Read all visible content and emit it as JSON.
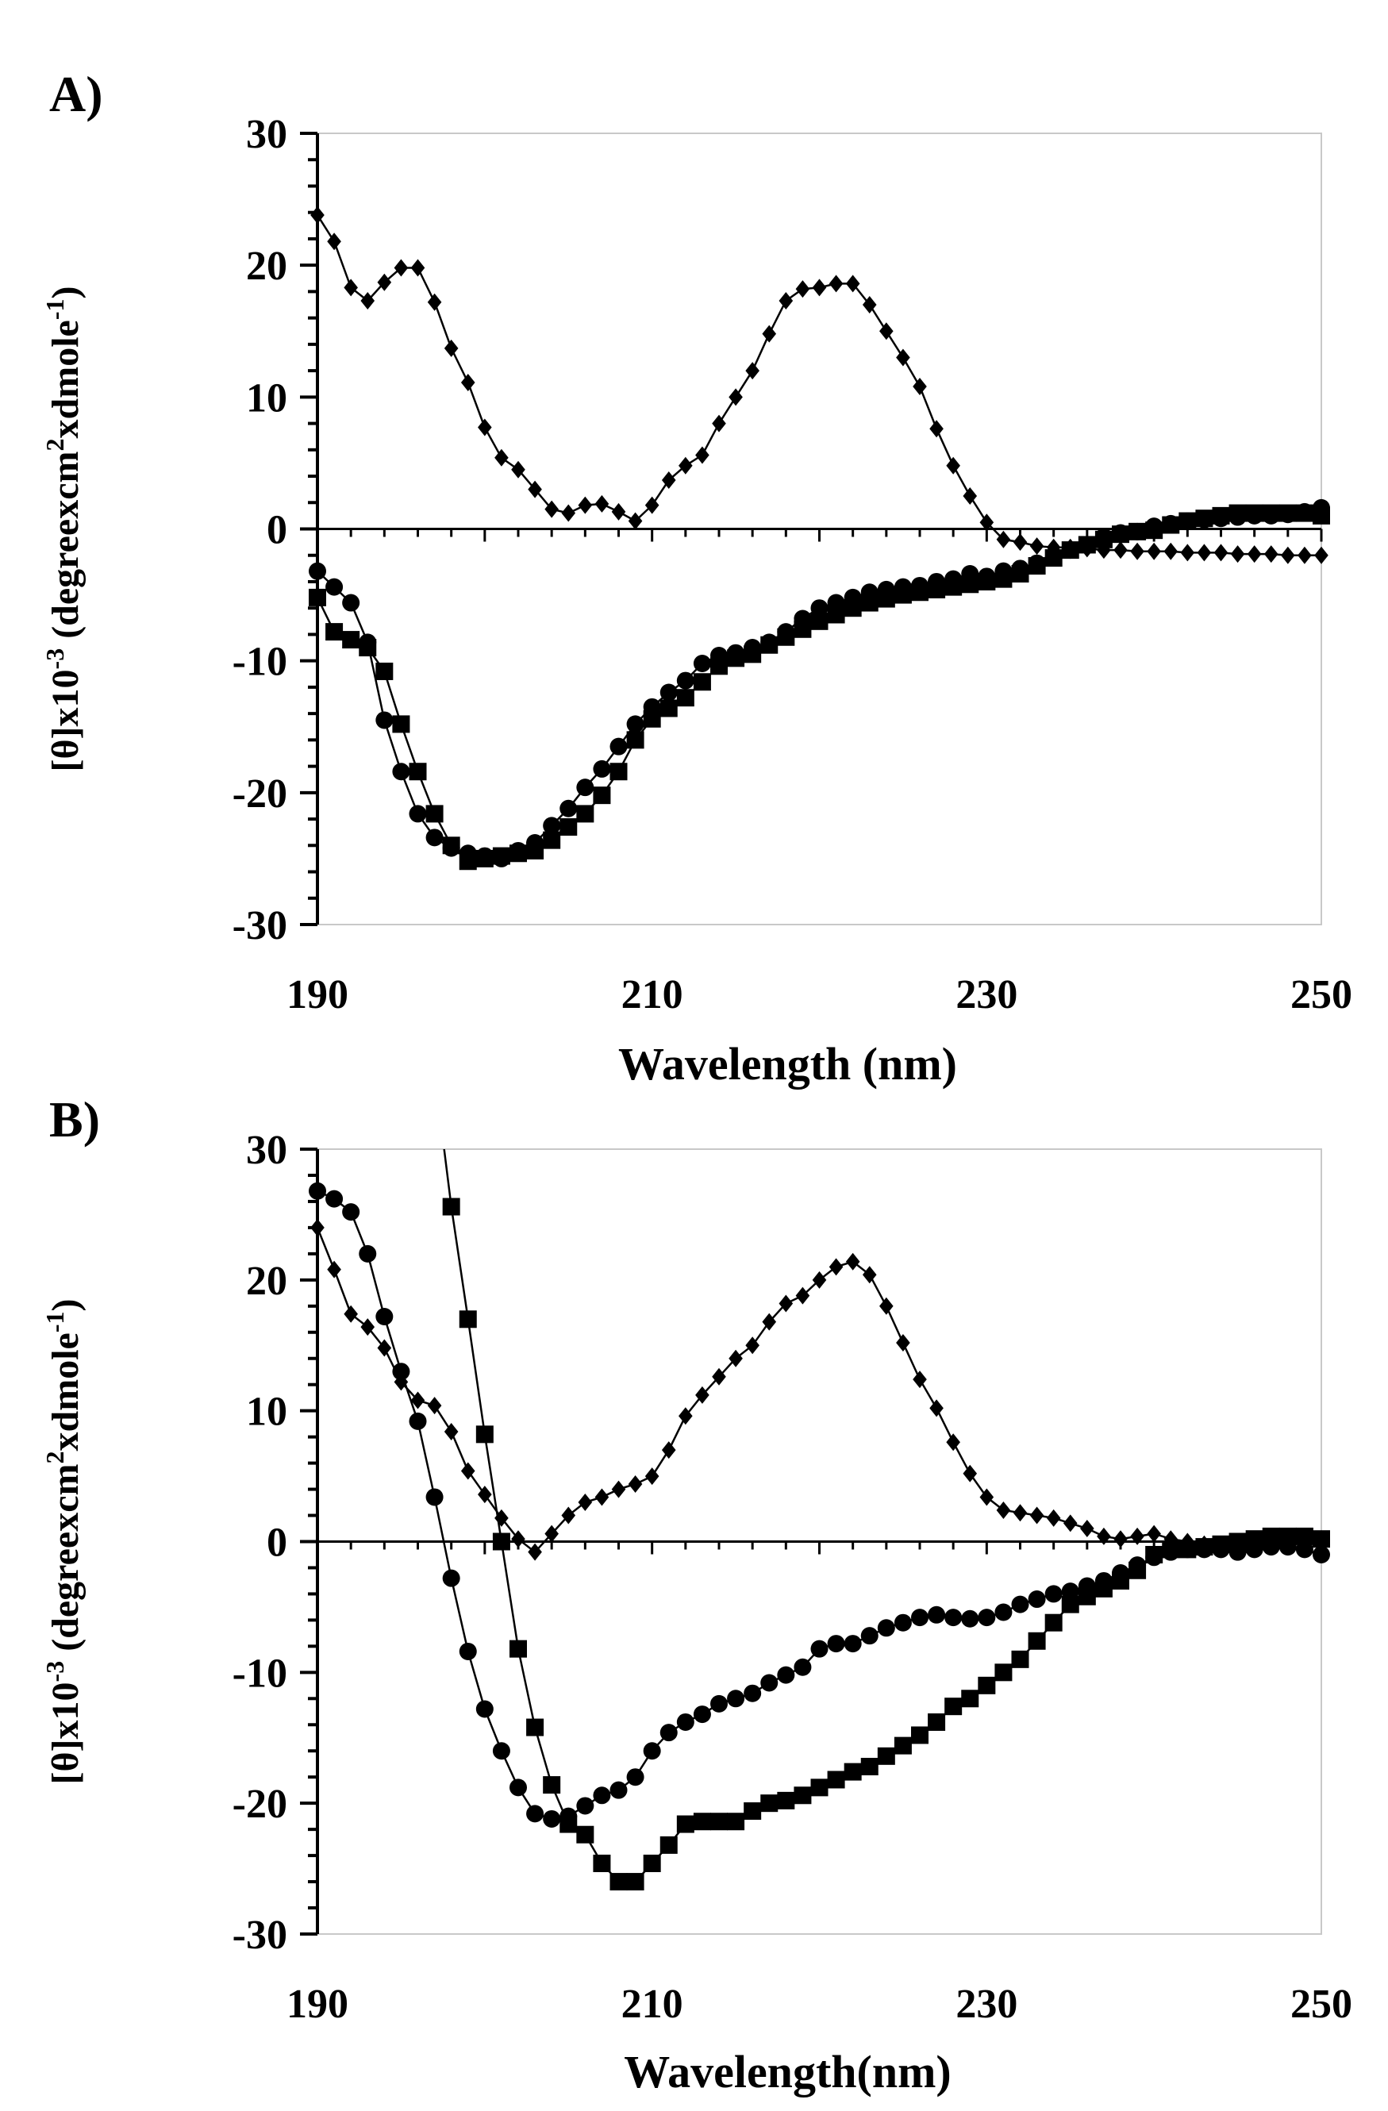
{
  "chart_data": [
    {
      "type": "line",
      "panel_label": "A)",
      "xlabel": "Wavelength (nm)",
      "ylabel": "[θ]x10-3 (degreexcm2xdmole-1)",
      "ylabel_parts": {
        "pre": "[θ]x10",
        "exp1": "-3",
        "mid": " (degreexcm",
        "exp2": "2",
        "mid2": "xdmole",
        "exp3": "-1",
        "post": ")"
      },
      "xlim": [
        190,
        250
      ],
      "ylim": [
        -30,
        30
      ],
      "x_ticks": [
        "190",
        "210",
        "230",
        "250"
      ],
      "y_ticks": [
        "30",
        "20",
        "10",
        "0",
        "-10",
        "-20",
        "-30"
      ],
      "series": [
        {
          "name": "diamond",
          "marker": "diamond",
          "x": [
            190,
            191,
            192,
            193,
            194,
            195,
            196,
            197,
            198,
            199,
            200,
            201,
            202,
            203,
            204,
            205,
            206,
            207,
            208,
            209,
            210,
            211,
            212,
            213,
            214,
            215,
            216,
            217,
            218,
            219,
            220,
            221,
            222,
            223,
            224,
            225,
            226,
            227,
            228,
            229,
            230,
            231,
            232,
            233,
            234,
            235,
            236,
            237,
            238,
            239,
            240,
            241,
            242,
            243,
            244,
            245,
            246,
            247,
            248,
            249,
            250
          ],
          "y": [
            23.8,
            21.8,
            18.3,
            17.3,
            18.7,
            19.8,
            19.8,
            17.2,
            13.7,
            11.1,
            7.7,
            5.4,
            4.5,
            3.0,
            1.5,
            1.2,
            1.8,
            1.9,
            1.3,
            0.6,
            1.8,
            3.7,
            4.8,
            5.6,
            8.0,
            10.0,
            12.0,
            14.8,
            17.3,
            18.2,
            18.3,
            18.6,
            18.6,
            17.0,
            15.0,
            13.0,
            10.8,
            7.6,
            4.8,
            2.5,
            0.5,
            -0.8,
            -1.0,
            -1.3,
            -1.4,
            -1.4,
            -1.5,
            -1.6,
            -1.6,
            -1.7,
            -1.7,
            -1.7,
            -1.8,
            -1.8,
            -1.8,
            -1.9,
            -1.9,
            -1.9,
            -2.0,
            -2.0,
            -2.0
          ]
        },
        {
          "name": "circle",
          "marker": "circle",
          "x": [
            190,
            191,
            192,
            193,
            194,
            195,
            196,
            197,
            198,
            199,
            200,
            201,
            202,
            203,
            204,
            205,
            206,
            207,
            208,
            209,
            210,
            211,
            212,
            213,
            214,
            215,
            216,
            217,
            218,
            219,
            220,
            221,
            222,
            223,
            224,
            225,
            226,
            227,
            228,
            229,
            230,
            231,
            232,
            233,
            234,
            235,
            236,
            237,
            238,
            239,
            240,
            241,
            242,
            243,
            244,
            245,
            246,
            247,
            248,
            249,
            250
          ],
          "y": [
            -3.2,
            -4.4,
            -5.6,
            -8.6,
            -14.5,
            -18.4,
            -21.6,
            -23.4,
            -24.2,
            -24.6,
            -24.8,
            -25.0,
            -24.4,
            -23.8,
            -22.5,
            -21.2,
            -19.6,
            -18.2,
            -16.5,
            -14.8,
            -13.5,
            -12.4,
            -11.5,
            -10.2,
            -9.6,
            -9.4,
            -9.0,
            -8.6,
            -7.8,
            -6.8,
            -6.0,
            -5.6,
            -5.2,
            -4.8,
            -4.6,
            -4.4,
            -4.3,
            -4.0,
            -3.8,
            -3.4,
            -3.6,
            -3.2,
            -3.0,
            -2.6,
            -2.2,
            -1.6,
            -1.2,
            -0.6,
            -0.3,
            -0.2,
            0.2,
            0.4,
            0.6,
            0.7,
            0.8,
            0.9,
            1.0,
            1.0,
            1.1,
            1.3,
            1.6
          ]
        },
        {
          "name": "square",
          "marker": "square",
          "x": [
            190,
            191,
            192,
            193,
            194,
            195,
            196,
            197,
            198,
            199,
            200,
            201,
            202,
            203,
            204,
            205,
            206,
            207,
            208,
            209,
            210,
            211,
            212,
            213,
            214,
            215,
            216,
            217,
            218,
            219,
            220,
            221,
            222,
            223,
            224,
            225,
            226,
            227,
            228,
            229,
            230,
            231,
            232,
            233,
            234,
            235,
            236,
            237,
            238,
            239,
            240,
            241,
            242,
            243,
            244,
            245,
            246,
            247,
            248,
            249,
            250
          ],
          "y": [
            -5.2,
            -7.8,
            -8.4,
            -9.0,
            -10.8,
            -14.8,
            -18.4,
            -21.6,
            -24.0,
            -25.2,
            -25.0,
            -24.8,
            -24.6,
            -24.4,
            -23.6,
            -22.6,
            -21.6,
            -20.2,
            -18.4,
            -16.0,
            -14.4,
            -13.6,
            -12.8,
            -11.6,
            -10.4,
            -9.8,
            -9.5,
            -8.8,
            -8.2,
            -7.6,
            -7.0,
            -6.5,
            -6.0,
            -5.6,
            -5.3,
            -5.0,
            -4.8,
            -4.6,
            -4.4,
            -4.2,
            -4.0,
            -3.8,
            -3.4,
            -2.8,
            -2.2,
            -1.6,
            -1.2,
            -0.8,
            -0.4,
            -0.2,
            -0.1,
            0.3,
            0.6,
            0.8,
            1.0,
            1.2,
            1.2,
            1.2,
            1.2,
            1.2,
            1.0
          ]
        }
      ]
    },
    {
      "type": "line",
      "panel_label": "B)",
      "xlabel": "Wavelength(nm)",
      "ylabel": "[θ]x10-3 (degreexcm2xdmole-1)",
      "ylabel_parts": {
        "pre": "[θ]x10",
        "exp1": "-3",
        "mid": " (degreexcm",
        "exp2": "2",
        "mid2": "xdmole",
        "exp3": "-1",
        "post": ")"
      },
      "xlim": [
        190,
        250
      ],
      "ylim": [
        -30,
        30
      ],
      "x_ticks": [
        "190",
        "210",
        "230",
        "250"
      ],
      "y_ticks": [
        "30",
        "20",
        "10",
        "0",
        "-10",
        "-20",
        "-30"
      ],
      "series": [
        {
          "name": "diamond",
          "marker": "diamond",
          "x": [
            190,
            191,
            192,
            193,
            194,
            195,
            196,
            197,
            198,
            199,
            200,
            201,
            202,
            203,
            204,
            205,
            206,
            207,
            208,
            209,
            210,
            211,
            212,
            213,
            214,
            215,
            216,
            217,
            218,
            219,
            220,
            221,
            222,
            223,
            224,
            225,
            226,
            227,
            228,
            229,
            230,
            231,
            232,
            233,
            234,
            235,
            236,
            237,
            238,
            239,
            240,
            241,
            242,
            243,
            244,
            245,
            246,
            247,
            248,
            249,
            250
          ],
          "y": [
            24.0,
            20.8,
            17.4,
            16.4,
            14.8,
            12.2,
            10.8,
            10.4,
            8.4,
            5.4,
            3.6,
            1.8,
            0.2,
            -0.8,
            0.6,
            2.0,
            3.0,
            3.4,
            4.0,
            4.4,
            5.0,
            7.0,
            9.6,
            11.2,
            12.6,
            14.0,
            15.0,
            16.8,
            18.2,
            18.8,
            20.0,
            21.0,
            21.4,
            20.4,
            18.0,
            15.2,
            12.4,
            10.2,
            7.6,
            5.2,
            3.4,
            2.4,
            2.2,
            2.0,
            1.8,
            1.4,
            1.0,
            0.4,
            0.2,
            0.4,
            0.6,
            0.2,
            0.0,
            -0.2,
            -0.4,
            -0.2,
            0.0,
            0.2,
            0.2,
            0.2,
            0.2
          ]
        },
        {
          "name": "circle",
          "marker": "circle",
          "x": [
            190,
            191,
            192,
            193,
            194,
            195,
            196,
            197,
            198,
            199,
            200,
            201,
            202,
            203,
            204,
            205,
            206,
            207,
            208,
            209,
            210,
            211,
            212,
            213,
            214,
            215,
            216,
            217,
            218,
            219,
            220,
            221,
            222,
            223,
            224,
            225,
            226,
            227,
            228,
            229,
            230,
            231,
            232,
            233,
            234,
            235,
            236,
            237,
            238,
            239,
            240,
            241,
            242,
            243,
            244,
            245,
            246,
            247,
            248,
            249,
            250
          ],
          "y": [
            26.8,
            26.2,
            25.2,
            22.0,
            17.2,
            13.0,
            9.2,
            3.4,
            -2.8,
            -8.4,
            -12.8,
            -16.0,
            -18.8,
            -20.8,
            -21.2,
            -21.0,
            -20.2,
            -19.4,
            -19.0,
            -18.0,
            -16.0,
            -14.6,
            -13.8,
            -13.2,
            -12.4,
            -12.0,
            -11.6,
            -10.8,
            -10.2,
            -9.6,
            -8.2,
            -7.8,
            -7.8,
            -7.2,
            -6.6,
            -6.2,
            -5.8,
            -5.6,
            -5.8,
            -5.9,
            -5.8,
            -5.4,
            -4.8,
            -4.4,
            -4.0,
            -3.8,
            -3.4,
            -3.0,
            -2.4,
            -1.8,
            -1.2,
            -0.8,
            -0.6,
            -0.6,
            -0.6,
            -0.8,
            -0.6,
            -0.4,
            -0.4,
            -0.6,
            -1.0
          ]
        },
        {
          "name": "square",
          "marker": "square",
          "x": [
            198,
            199,
            200,
            201,
            202,
            203,
            204,
            205,
            206,
            207,
            208,
            209,
            210,
            211,
            212,
            213,
            214,
            215,
            216,
            217,
            218,
            219,
            220,
            221,
            222,
            223,
            224,
            225,
            226,
            227,
            228,
            229,
            230,
            231,
            232,
            233,
            234,
            235,
            236,
            237,
            238,
            239,
            240,
            241,
            242,
            243,
            244,
            245,
            246,
            247,
            248,
            249,
            250
          ],
          "y": [
            25.6,
            17.0,
            8.2,
            0.0,
            -8.2,
            -14.2,
            -18.6,
            -21.6,
            -22.4,
            -24.6,
            -26.0,
            -26.0,
            -24.6,
            -23.2,
            -21.6,
            -21.4,
            -21.4,
            -21.4,
            -20.6,
            -20.0,
            -19.8,
            -19.4,
            -18.8,
            -18.2,
            -17.6,
            -17.2,
            -16.4,
            -15.6,
            -14.8,
            -13.8,
            -12.6,
            -12.0,
            -11.0,
            -10.0,
            -9.0,
            -7.6,
            -6.2,
            -4.8,
            -4.2,
            -3.6,
            -3.0,
            -2.2,
            -1.0,
            -0.6,
            -0.6,
            -0.4,
            -0.2,
            0.0,
            0.2,
            0.4,
            0.4,
            0.4,
            0.2
          ]
        }
      ]
    }
  ]
}
